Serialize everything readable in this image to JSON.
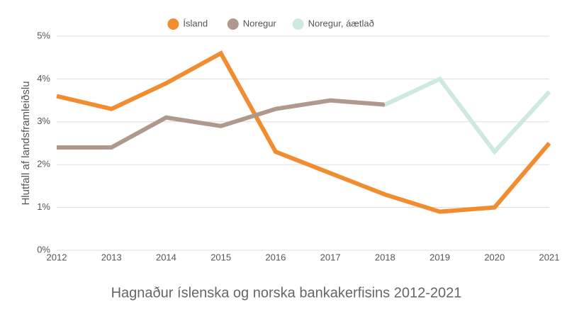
{
  "chart_data": {
    "type": "line",
    "title": "Hagnaður íslenska og norska bankakerfisins 2012-2021",
    "ylabel": "Hlutfall af landsframleiðslu",
    "x": [
      2012,
      2013,
      2014,
      2015,
      2016,
      2017,
      2018,
      2019,
      2020,
      2021
    ],
    "xlim": [
      2012,
      2021
    ],
    "xticks": [
      2012,
      2013,
      2014,
      2015,
      2016,
      2017,
      2018,
      2019,
      2020,
      2021
    ],
    "ylim": [
      0,
      5
    ],
    "yticks": [
      {
        "value": 0,
        "label": "0%"
      },
      {
        "value": 1,
        "label": "1%"
      },
      {
        "value": 2,
        "label": "2%"
      },
      {
        "value": 3,
        "label": "3%"
      },
      {
        "value": 4,
        "label": "4%"
      },
      {
        "value": 5,
        "label": "5%"
      }
    ],
    "grid": true,
    "legend": "top",
    "series": [
      {
        "name": "Ísland",
        "color": "#f28c30",
        "values": [
          3.6,
          3.3,
          3.9,
          4.6,
          2.3,
          1.8,
          1.3,
          0.9,
          1.0,
          2.5
        ]
      },
      {
        "name": "Noregur",
        "color": "#b0998c",
        "values": [
          2.4,
          2.4,
          3.1,
          2.9,
          3.3,
          3.5,
          3.4,
          null,
          null,
          null
        ]
      },
      {
        "name": "Noregur, áætlað",
        "color": "#cde9e0",
        "values": [
          null,
          null,
          null,
          null,
          null,
          null,
          3.4,
          4.0,
          2.3,
          3.7
        ]
      }
    ]
  }
}
